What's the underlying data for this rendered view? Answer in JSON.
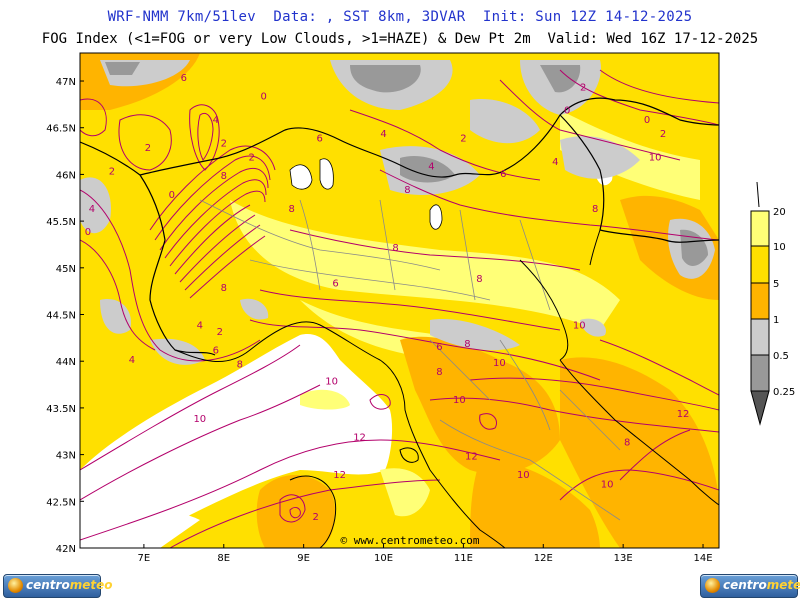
{
  "header": {
    "title_line1": "WRF-NMM 7km/51lev  Data: , SST 8km, 3DVAR  Init: Sun 12Z 14-12-2025",
    "title_line2": "FOG Index (<1=FOG or very Low Clouds, >1=HAZE) & Dew Pt 2m  Valid: Wed 16Z 17-12-2025"
  },
  "map": {
    "lat_labels": [
      "47N",
      "46.5N",
      "46N",
      "45.5N",
      "45N",
      "44.5N",
      "44N",
      "43.5N",
      "43N",
      "42.5N",
      "42N"
    ],
    "lon_labels": [
      "7E",
      "8E",
      "9E",
      "10E",
      "11E",
      "12E",
      "13E",
      "14E"
    ],
    "lat_range": [
      42,
      47.3
    ],
    "lon_range": [
      6.2,
      14.2
    ],
    "watermark": "© www.centrometeo.com",
    "colors": {
      "fog_lt_0_25": "#555555",
      "fog_0_25_0_5": "#999999",
      "fog_0_5_1": "#cccccc",
      "haze_1_5": "#ffb400",
      "haze_5_10": "#ffe000",
      "haze_10_20": "#ffff77",
      "haze_gt_20": "#ffffff",
      "dewpoint_contours": "#b3006b",
      "borders": "#000000",
      "admin_borders": "#8a8a8a"
    },
    "contour_labels": [
      {
        "text": "6",
        "lon": 7.5,
        "lat": 47.0
      },
      {
        "text": "4",
        "lon": 7.9,
        "lat": 46.55
      },
      {
        "text": "2",
        "lon": 7.05,
        "lat": 46.25
      },
      {
        "text": "2",
        "lon": 6.6,
        "lat": 46.0
      },
      {
        "text": "0",
        "lon": 8.5,
        "lat": 46.8
      },
      {
        "text": "2",
        "lon": 8.0,
        "lat": 46.3
      },
      {
        "text": "2",
        "lon": 8.35,
        "lat": 46.15
      },
      {
        "text": "8",
        "lon": 8.0,
        "lat": 45.95
      },
      {
        "text": "0",
        "lon": 7.35,
        "lat": 45.75
      },
      {
        "text": "4",
        "lon": 6.35,
        "lat": 45.6
      },
      {
        "text": "0",
        "lon": 6.3,
        "lat": 45.35
      },
      {
        "text": "8",
        "lon": 8.85,
        "lat": 45.6
      },
      {
        "text": "6",
        "lon": 9.2,
        "lat": 46.35
      },
      {
        "text": "4",
        "lon": 10.0,
        "lat": 46.4
      },
      {
        "text": "2",
        "lon": 11.0,
        "lat": 46.35
      },
      {
        "text": "4",
        "lon": 10.6,
        "lat": 46.05
      },
      {
        "text": "6",
        "lon": 11.5,
        "lat": 45.97
      },
      {
        "text": "8",
        "lon": 10.3,
        "lat": 45.8
      },
      {
        "text": "8",
        "lon": 10.15,
        "lat": 45.18
      },
      {
        "text": "8",
        "lon": 8.0,
        "lat": 44.75
      },
      {
        "text": "8",
        "lon": 11.2,
        "lat": 44.85
      },
      {
        "text": "6",
        "lon": 9.4,
        "lat": 44.8
      },
      {
        "text": "4",
        "lon": 7.7,
        "lat": 44.35
      },
      {
        "text": "2",
        "lon": 7.95,
        "lat": 44.28
      },
      {
        "text": "6",
        "lon": 7.9,
        "lat": 44.08
      },
      {
        "text": "8",
        "lon": 8.2,
        "lat": 43.93
      },
      {
        "text": "4",
        "lon": 6.85,
        "lat": 43.98
      },
      {
        "text": "0",
        "lon": 12.3,
        "lat": 46.65
      },
      {
        "text": "0",
        "lon": 13.3,
        "lat": 46.55
      },
      {
        "text": "2",
        "lon": 13.5,
        "lat": 46.4
      },
      {
        "text": "2",
        "lon": 12.5,
        "lat": 46.9
      },
      {
        "text": "4",
        "lon": 12.15,
        "lat": 46.1
      },
      {
        "text": "10",
        "lon": 13.4,
        "lat": 46.15
      },
      {
        "text": "8",
        "lon": 12.65,
        "lat": 45.6
      },
      {
        "text": "8",
        "lon": 11.05,
        "lat": 44.15
      },
      {
        "text": "10",
        "lon": 11.45,
        "lat": 43.95
      },
      {
        "text": "10",
        "lon": 12.45,
        "lat": 44.35
      },
      {
        "text": "6",
        "lon": 10.7,
        "lat": 44.12
      },
      {
        "text": "8",
        "lon": 10.7,
        "lat": 43.85
      },
      {
        "text": "10",
        "lon": 9.35,
        "lat": 43.75
      },
      {
        "text": "10",
        "lon": 7.7,
        "lat": 43.35
      },
      {
        "text": "10",
        "lon": 10.95,
        "lat": 43.55
      },
      {
        "text": "12",
        "lon": 9.7,
        "lat": 43.15
      },
      {
        "text": "12",
        "lon": 11.1,
        "lat": 42.95
      },
      {
        "text": "12",
        "lon": 13.75,
        "lat": 43.4
      },
      {
        "text": "10",
        "lon": 11.75,
        "lat": 42.75
      },
      {
        "text": "8",
        "lon": 13.05,
        "lat": 43.1
      },
      {
        "text": "10",
        "lon": 12.8,
        "lat": 42.65
      },
      {
        "text": "12",
        "lon": 9.45,
        "lat": 42.75
      },
      {
        "text": "2",
        "lon": 9.15,
        "lat": 42.3
      }
    ]
  },
  "legend": {
    "labels": [
      "20",
      "10",
      "5",
      "1",
      "0.5",
      "0.25"
    ]
  },
  "logos": {
    "left_text_a": "centro",
    "left_text_b": "meteo",
    "right_text_a": "centro",
    "right_text_b": "meteo"
  }
}
